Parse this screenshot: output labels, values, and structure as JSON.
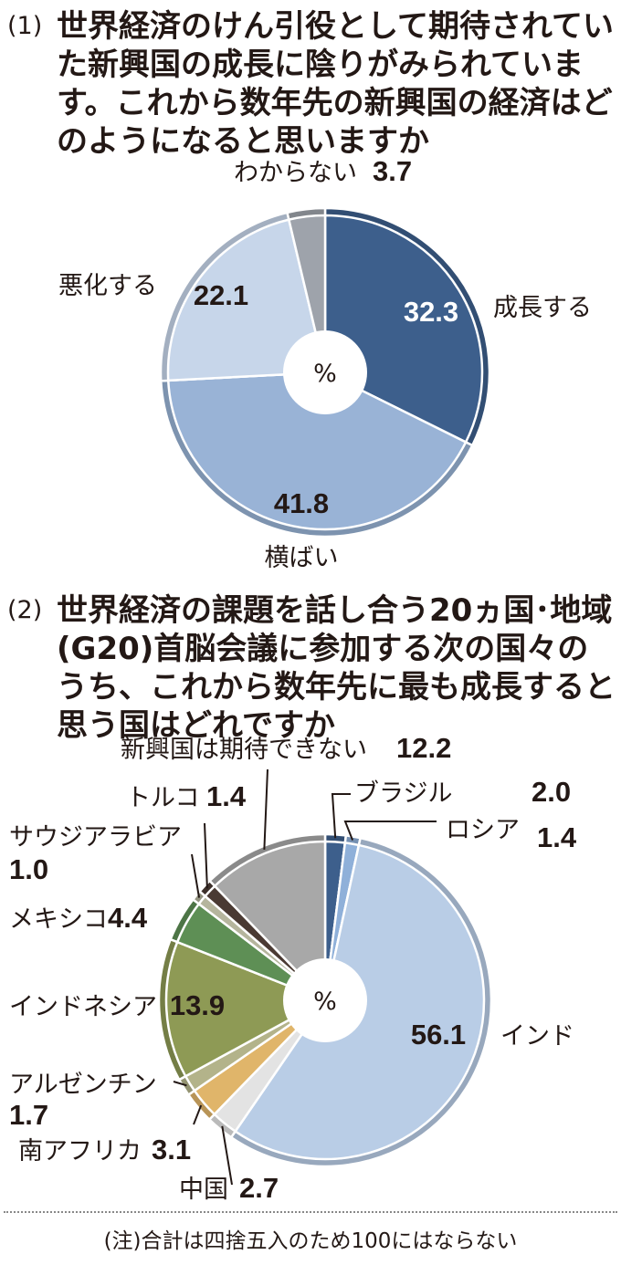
{
  "q1": {
    "number": "(1)",
    "text": "世界経済のけん引役として期待されていた新興国の成長に陰りがみられています。これから数年先の新興国の経済はどのようになると思いますか"
  },
  "q2": {
    "number": "(2)",
    "text": "世界経済の課題を話し合う20ヵ国･地域(G20)首脳会議に参加する次の国々のうち、これから数年先に最も成長すると思う国はどれですか"
  },
  "center_label": "%",
  "note": "(注)合計は四捨五入のため100にはならない",
  "chart_data": [
    {
      "type": "pie",
      "donut": true,
      "unit": "%",
      "slices": [
        {
          "label": "成長する",
          "value": 32.3,
          "value_text": "32.3",
          "color": "#3d5f8c"
        },
        {
          "label": "横ばい",
          "value": 41.8,
          "value_text": "41.8",
          "color": "#99b3d6"
        },
        {
          "label": "悪化する",
          "value": 22.1,
          "value_text": "22.1",
          "color": "#c7d6ea"
        },
        {
          "label": "わからない",
          "value": 3.7,
          "value_text": "3.7",
          "color": "#9ea3ab"
        }
      ]
    },
    {
      "type": "pie",
      "donut": true,
      "unit": "%",
      "slices": [
        {
          "label": "ブラジル",
          "value": 2.0,
          "value_text": "2.0",
          "color": "#3d5f8c"
        },
        {
          "label": "ロシア",
          "value": 1.4,
          "value_text": "1.4",
          "color": "#8fb0d9"
        },
        {
          "label": "インド",
          "value": 56.1,
          "value_text": "56.1",
          "color": "#b9cde6"
        },
        {
          "label": "中国",
          "value": 2.7,
          "value_text": "2.7",
          "color": "#e3e3e3"
        },
        {
          "label": "南アフリカ",
          "value": 3.1,
          "value_text": "3.1",
          "color": "#e0b56a"
        },
        {
          "label": "アルゼンチン",
          "value": 1.7,
          "value_text": "1.7",
          "color": "#b3b38a"
        },
        {
          "label": "インドネシア",
          "value": 13.9,
          "value_text": "13.9",
          "color": "#8e9a55"
        },
        {
          "label": "メキシコ",
          "value": 4.4,
          "value_text": "4.4",
          "color": "#5e8f55"
        },
        {
          "label": "サウジアラビア",
          "value": 1.0,
          "value_text": "1.0",
          "color": "#b5b59d"
        },
        {
          "label": "トルコ",
          "value": 1.4,
          "value_text": "1.4",
          "color": "#4a3a33"
        },
        {
          "label": "新興国は期待できない",
          "value": 12.2,
          "value_text": "12.2",
          "color": "#a8a8a8"
        }
      ]
    }
  ]
}
